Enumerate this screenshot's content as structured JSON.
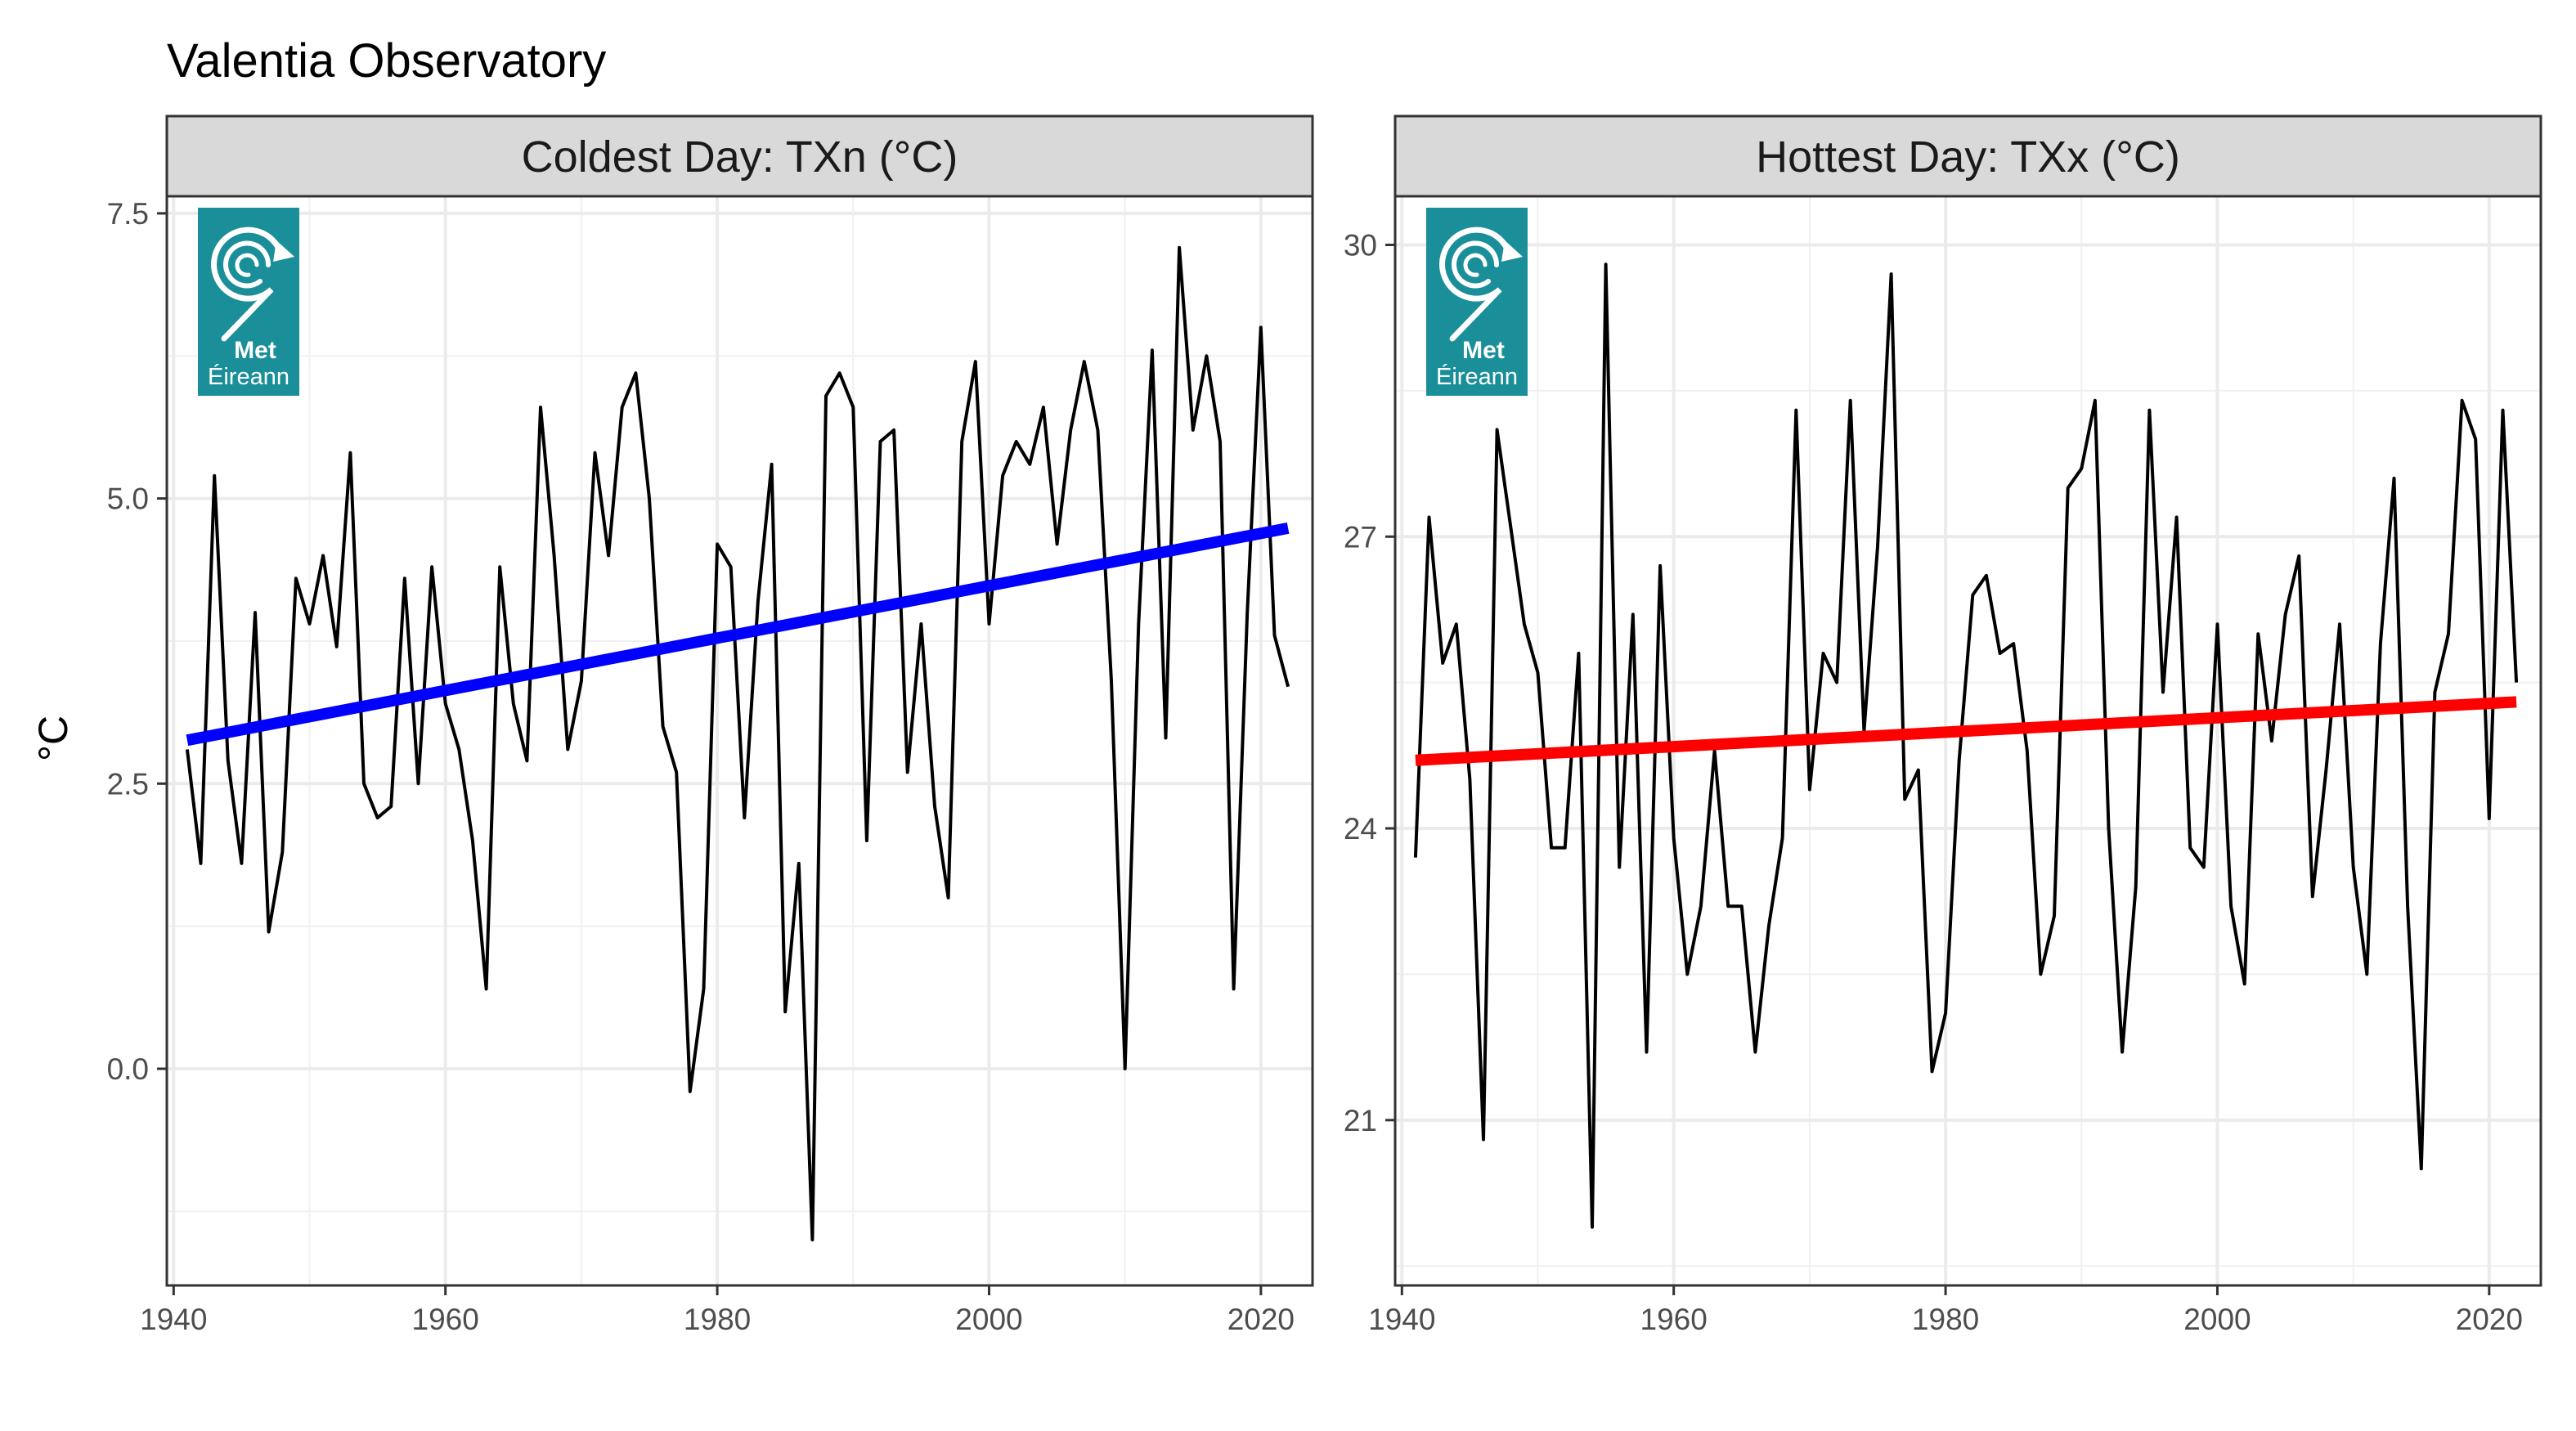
{
  "title": "Valentia Observatory",
  "ylabel": "°C",
  "logo": {
    "line1": "Met",
    "line2": "Éireann",
    "icon": "met-eireann-swirl-logo",
    "color": "#1a8f9a"
  },
  "chart_data": [
    {
      "type": "line",
      "title": "Coldest Day: TXn (°C)",
      "xlim": [
        1939.5,
        2023.8
      ],
      "ylim": [
        -1.9,
        7.65
      ],
      "xticks": [
        1940,
        1960,
        1980,
        2000,
        2020
      ],
      "yticks": [
        0.0,
        2.5,
        5.0,
        7.5
      ],
      "ytick_labels": [
        "0.0",
        "2.5",
        "5.0",
        "7.5"
      ],
      "grid": true,
      "series": [
        {
          "x": [
            1941,
            1942,
            1943,
            1944,
            1945,
            1946,
            1947,
            1948,
            1949,
            1950,
            1951,
            1952,
            1953,
            1954,
            1955,
            1956,
            1957,
            1958,
            1959,
            1960,
            1961,
            1962,
            1963,
            1964,
            1965,
            1966,
            1967,
            1968,
            1969,
            1970,
            1971,
            1972,
            1973,
            1974,
            1975,
            1976,
            1977,
            1978,
            1979,
            1980,
            1981,
            1982,
            1983,
            1984,
            1985,
            1986,
            1987,
            1988,
            1989,
            1990,
            1991,
            1992,
            1993,
            1994,
            1995,
            1996,
            1997,
            1998,
            1999,
            2000,
            2001,
            2002,
            2003,
            2004,
            2005,
            2006,
            2007,
            2008,
            2009,
            2010,
            2011,
            2012,
            2013,
            2014,
            2015,
            2016,
            2017,
            2018,
            2019,
            2020,
            2021,
            2022
          ],
          "y": [
            2.8,
            1.8,
            5.2,
            2.7,
            1.8,
            4.0,
            1.2,
            1.9,
            4.3,
            3.9,
            4.5,
            3.7,
            5.4,
            2.5,
            2.2,
            2.3,
            4.3,
            2.5,
            4.4,
            3.2,
            2.8,
            2.0,
            0.7,
            4.4,
            3.2,
            2.7,
            5.8,
            4.5,
            2.8,
            3.4,
            5.4,
            4.5,
            5.8,
            6.1,
            5.0,
            3.0,
            2.6,
            -0.2,
            0.7,
            4.6,
            4.4,
            2.2,
            4.1,
            5.3,
            0.5,
            1.8,
            -1.5,
            5.9,
            6.1,
            5.8,
            2.0,
            5.5,
            5.6,
            2.6,
            3.9,
            2.3,
            1.5,
            5.5,
            6.2,
            3.9,
            5.2,
            5.5,
            5.3,
            5.8,
            4.6,
            5.6,
            6.2,
            5.6,
            3.4,
            0.0,
            3.9,
            6.3,
            2.9,
            7.2,
            5.6,
            6.25,
            5.5,
            0.7,
            4.0,
            6.5,
            3.8,
            3.35
          ],
          "color": "#000000"
        },
        {
          "name": "trend",
          "x": [
            1941,
            2022
          ],
          "y": [
            2.88,
            4.74
          ],
          "color": "#0000ff"
        }
      ]
    },
    {
      "type": "line",
      "title": "Hottest Day: TXx (°C)",
      "xlim": [
        1939.5,
        2023.8
      ],
      "ylim": [
        19.3,
        30.5
      ],
      "xticks": [
        1940,
        1960,
        1980,
        2000,
        2020
      ],
      "yticks": [
        21,
        24,
        27,
        30
      ],
      "ytick_labels": [
        "21",
        "24",
        "27",
        "30"
      ],
      "grid": true,
      "series": [
        {
          "x": [
            1941,
            1942,
            1943,
            1944,
            1945,
            1946,
            1947,
            1948,
            1949,
            1950,
            1951,
            1952,
            1953,
            1954,
            1955,
            1956,
            1957,
            1958,
            1959,
            1960,
            1961,
            1962,
            1963,
            1964,
            1965,
            1966,
            1967,
            1968,
            1969,
            1970,
            1971,
            1972,
            1973,
            1974,
            1975,
            1976,
            1977,
            1978,
            1979,
            1980,
            1981,
            1982,
            1983,
            1984,
            1985,
            1986,
            1987,
            1988,
            1989,
            1990,
            1991,
            1992,
            1993,
            1994,
            1995,
            1996,
            1997,
            1998,
            1999,
            2000,
            2001,
            2002,
            2003,
            2004,
            2005,
            2006,
            2007,
            2008,
            2009,
            2010,
            2011,
            2012,
            2013,
            2014,
            2015,
            2016,
            2017,
            2018,
            2019,
            2020,
            2021,
            2022
          ],
          "y": [
            23.7,
            27.2,
            25.7,
            26.1,
            24.5,
            20.8,
            28.1,
            27.1,
            26.1,
            25.6,
            23.8,
            23.8,
            25.8,
            19.9,
            29.8,
            23.6,
            26.2,
            21.7,
            26.7,
            23.9,
            22.5,
            23.2,
            24.8,
            23.2,
            23.2,
            21.7,
            23.0,
            23.9,
            28.3,
            24.4,
            25.8,
            25.5,
            28.4,
            25.0,
            26.9,
            29.7,
            24.3,
            24.6,
            21.5,
            22.1,
            24.7,
            26.4,
            26.6,
            25.8,
            25.9,
            24.8,
            22.5,
            23.1,
            27.5,
            27.7,
            28.4,
            24.0,
            21.7,
            23.4,
            28.3,
            25.4,
            27.2,
            23.8,
            23.6,
            26.1,
            23.2,
            22.4,
            26.0,
            24.9,
            26.2,
            26.8,
            23.3,
            24.6,
            26.1,
            23.6,
            22.5,
            25.9,
            27.6,
            23.2,
            20.5,
            25.4,
            26.0,
            28.4,
            28.0,
            24.1,
            28.3,
            25.5
          ],
          "color": "#000000"
        },
        {
          "name": "trend",
          "x": [
            1941,
            2022
          ],
          "y": [
            24.7,
            25.3
          ],
          "color": "#ff0000"
        }
      ]
    }
  ]
}
